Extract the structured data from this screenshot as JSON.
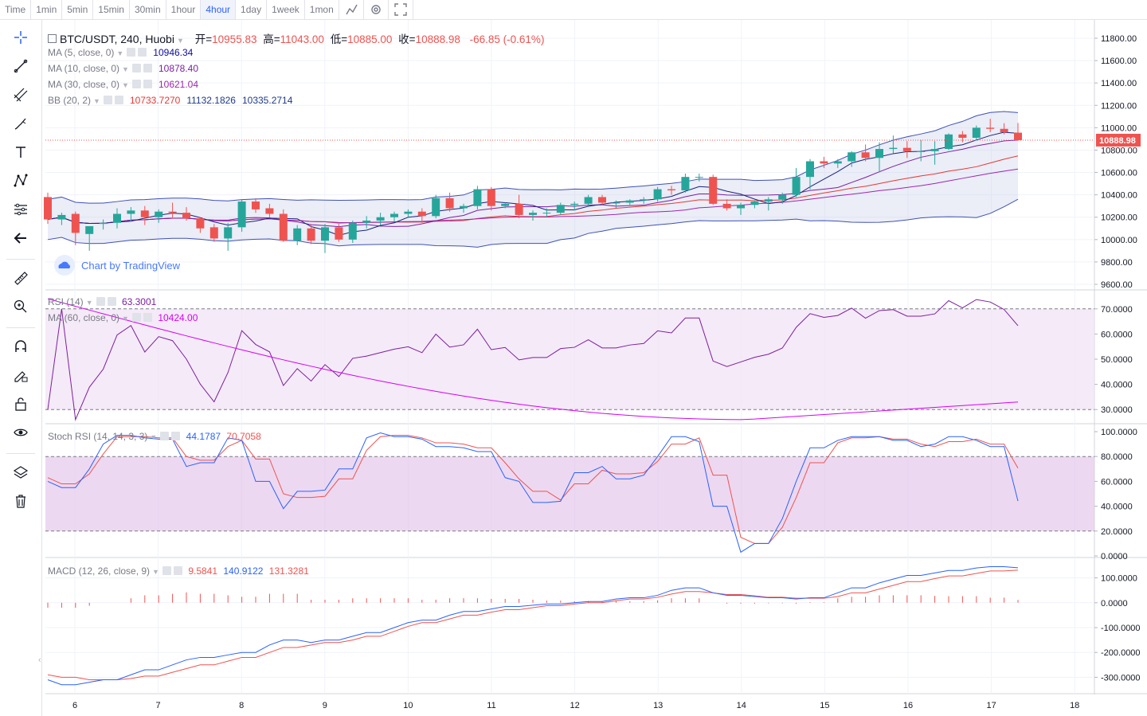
{
  "toolbar": {
    "items": [
      "Time",
      "1min",
      "5min",
      "15min",
      "30min",
      "1hour",
      "4hour",
      "1day",
      "1week",
      "1mon"
    ],
    "active": "4hour"
  },
  "main": {
    "symbol": "BTC/USDT, 240, Huobi",
    "ohlc": {
      "open_label": "开=",
      "open": "10955.83",
      "high_label": "高=",
      "high": "11043.00",
      "low_label": "低=",
      "low": "10885.00",
      "close_label": "收=",
      "close": "10888.98",
      "change": "-66.85 (-0.61%)"
    },
    "indicators": [
      {
        "label": "MA (5, close, 0)",
        "values": [
          "10946.34"
        ],
        "colors": [
          "#0d0d9e"
        ]
      },
      {
        "label": "MA (10, close, 0)",
        "values": [
          "10878.40"
        ],
        "colors": [
          "#7b1fa2"
        ]
      },
      {
        "label": "MA (30, close, 0)",
        "values": [
          "10621.04"
        ],
        "colors": [
          "#9c27b0"
        ]
      },
      {
        "label": "BB (20, 2)",
        "values": [
          "10733.7270",
          "11132.1826",
          "10335.2714"
        ],
        "colors": [
          "#e53935",
          "#1e3a8a",
          "#1e3a8a"
        ]
      }
    ],
    "watermark": "Chart by TradingView",
    "price_ticks": [
      "11800.00",
      "11600.00",
      "11400.00",
      "11200.00",
      "11000.00",
      "10800.00",
      "10600.00",
      "10400.00",
      "10200.00",
      "10000.00",
      "9800.00",
      "9600.00"
    ],
    "last_price": "10888.98"
  },
  "rsi": {
    "label": "RSI (14)",
    "value": "63.3001",
    "ma_label": "MA (60, close, 0)",
    "ma_value": "10424.00",
    "ticks": [
      "70.0000",
      "60.0000",
      "50.0000",
      "40.0000",
      "30.0000"
    ]
  },
  "stoch": {
    "label": "Stoch RSI (14, 14, 3, 3)",
    "k": "44.1787",
    "d": "70.7058",
    "ticks": [
      "100.0000",
      "80.0000",
      "60.0000",
      "40.0000",
      "20.0000",
      "0.0000"
    ]
  },
  "macd": {
    "label": "MACD (12, 26, close, 9)",
    "hist": "9.5841",
    "macd": "140.9122",
    "signal": "131.3281",
    "ticks": [
      "100.0000",
      "0.0000",
      "-100.0000",
      "-200.0000",
      "-300.0000"
    ]
  },
  "x_ticks": [
    "6",
    "7",
    "8",
    "9",
    "10",
    "11",
    "12",
    "13",
    "14",
    "15",
    "16",
    "17",
    "18"
  ],
  "colors": {
    "up": "#26a69a",
    "down": "#ef5350",
    "accent": "#2962ff"
  },
  "chart_data": [
    {
      "type": "candlestick",
      "title": "BTC/USDT, 240, Huobi",
      "ylim": [
        9600,
        11800
      ],
      "x": [
        "6",
        "7",
        "8",
        "9",
        "10",
        "11",
        "12",
        "13",
        "14",
        "15",
        "16",
        "17"
      ],
      "candles_ohlc": [
        [
          10380,
          10420,
          10140,
          10180
        ],
        [
          10180,
          10240,
          10130,
          10220
        ],
        [
          10230,
          10250,
          9950,
          10060
        ],
        [
          10050,
          10120,
          9900,
          10120
        ],
        [
          10140,
          10180,
          10090,
          10150
        ],
        [
          10150,
          10280,
          10100,
          10230
        ],
        [
          10230,
          10290,
          10160,
          10260
        ],
        [
          10260,
          10300,
          10130,
          10200
        ],
        [
          10200,
          10270,
          10150,
          10250
        ],
        [
          10250,
          10330,
          10190,
          10240
        ],
        [
          10240,
          10290,
          10170,
          10190
        ],
        [
          10190,
          10200,
          10060,
          10100
        ],
        [
          10110,
          10140,
          9980,
          10010
        ],
        [
          10010,
          10150,
          9900,
          10110
        ],
        [
          10110,
          10360,
          10070,
          10340
        ],
        [
          10340,
          10370,
          10240,
          10270
        ],
        [
          10280,
          10320,
          10200,
          10230
        ],
        [
          10230,
          10270,
          9980,
          9990
        ],
        [
          9990,
          10130,
          9950,
          10100
        ],
        [
          10100,
          10140,
          9960,
          9990
        ],
        [
          9990,
          10140,
          9880,
          10110
        ],
        [
          10110,
          10140,
          9980,
          10000
        ],
        [
          10000,
          10170,
          9970,
          10150
        ],
        [
          10150,
          10210,
          10100,
          10170
        ],
        [
          10170,
          10240,
          10130,
          10200
        ],
        [
          10200,
          10250,
          10160,
          10230
        ],
        [
          10230,
          10270,
          10200,
          10250
        ],
        [
          10250,
          10280,
          10150,
          10210
        ],
        [
          10210,
          10400,
          10190,
          10370
        ],
        [
          10370,
          10420,
          10250,
          10280
        ],
        [
          10280,
          10320,
          10240,
          10300
        ],
        [
          10300,
          10480,
          10270,
          10450
        ],
        [
          10450,
          10470,
          10260,
          10300
        ],
        [
          10300,
          10330,
          10280,
          10320
        ],
        [
          10320,
          10400,
          10190,
          10220
        ],
        [
          10220,
          10260,
          10170,
          10240
        ],
        [
          10240,
          10280,
          10200,
          10240
        ],
        [
          10240,
          10330,
          10220,
          10310
        ],
        [
          10310,
          10340,
          10260,
          10320
        ],
        [
          10320,
          10400,
          10300,
          10380
        ],
        [
          10380,
          10400,
          10310,
          10330
        ],
        [
          10330,
          10350,
          10280,
          10330
        ],
        [
          10330,
          10360,
          10310,
          10350
        ],
        [
          10350,
          10380,
          10320,
          10360
        ],
        [
          10360,
          10470,
          10340,
          10450
        ],
        [
          10450,
          10480,
          10400,
          10440
        ],
        [
          10440,
          10590,
          10420,
          10560
        ],
        [
          10560,
          10590,
          10520,
          10560
        ],
        [
          10560,
          10580,
          10310,
          10320
        ],
        [
          10320,
          10360,
          10260,
          10280
        ],
        [
          10280,
          10330,
          10220,
          10310
        ],
        [
          10310,
          10350,
          10280,
          10340
        ],
        [
          10340,
          10380,
          10260,
          10360
        ],
        [
          10360,
          10420,
          10320,
          10400
        ],
        [
          10400,
          10640,
          10380,
          10560
        ],
        [
          10560,
          10720,
          10450,
          10700
        ],
        [
          10700,
          10740,
          10640,
          10680
        ],
        [
          10680,
          10720,
          10640,
          10700
        ],
        [
          10700,
          10790,
          10650,
          10780
        ],
        [
          10780,
          10850,
          10700,
          10730
        ],
        [
          10730,
          10870,
          10600,
          10810
        ],
        [
          10810,
          10930,
          10770,
          10820
        ],
        [
          10820,
          10880,
          10730,
          10790
        ],
        [
          10790,
          10890,
          10700,
          10790
        ],
        [
          10790,
          10880,
          10670,
          10810
        ],
        [
          10810,
          10950,
          10800,
          10940
        ],
        [
          10940,
          10970,
          10870,
          10910
        ],
        [
          10910,
          11020,
          10890,
          11000
        ],
        [
          11000,
          11080,
          10960,
          10990
        ],
        [
          10990,
          11040,
          10940,
          10960
        ],
        [
          10955.83,
          11043,
          10885,
          10888.98
        ]
      ]
    },
    {
      "type": "line",
      "title": "RSI (14)",
      "ylim": [
        25,
        75
      ],
      "last": 63.3001
    },
    {
      "type": "line",
      "title": "Stoch RSI (14, 14, 3, 3)",
      "ylim": [
        0,
        100
      ],
      "k_last": 44.1787,
      "d_last": 70.7058
    },
    {
      "type": "line",
      "title": "MACD (12, 26, close, 9)",
      "ylim": [
        -350,
        150
      ],
      "hist_last": 9.5841,
      "macd_last": 140.9122,
      "signal_last": 131.3281
    }
  ]
}
